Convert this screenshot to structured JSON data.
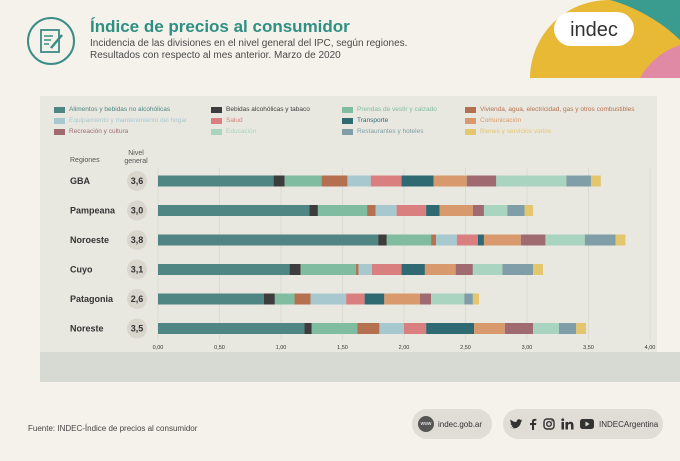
{
  "header": {
    "title": "Índice de precios al consumidor",
    "subtitle_line1": "Incidencia de las divisiones en el nivel general del IPC, según regiones.",
    "subtitle_line2": "Resultados con respecto al mes anterior. Marzo de 2020",
    "brand": "indec"
  },
  "chart_data": {
    "type": "bar",
    "orientation": "horizontal",
    "stacked": true,
    "row_header": "Regiones",
    "value_header_line1": "Nivel",
    "value_header_line2": "general",
    "categories": [
      "GBA",
      "Pampeana",
      "Noroeste",
      "Cuyo",
      "Patagonia",
      "Noreste"
    ],
    "nivel_general_labels": [
      "3,6",
      "3,0",
      "3,8",
      "3,1",
      "2,6",
      "3,5"
    ],
    "xlim": [
      0,
      4
    ],
    "ticks": [
      "0,00",
      "0,50",
      "1,00",
      "1,50",
      "2,00",
      "2,50",
      "3,00",
      "3,50",
      "4,00"
    ],
    "tick_values": [
      0,
      0.5,
      1,
      1.5,
      2,
      2.5,
      3,
      3.5,
      4
    ],
    "series": [
      {
        "name": "Alimentos y bebidas no alcohólicas",
        "color": "#4f8683",
        "values": [
          0.94,
          1.23,
          1.79,
          1.07,
          0.86,
          1.19
        ]
      },
      {
        "name": "Bebidas alcohólicas y tabaco",
        "color": "#3d3d3d",
        "values": [
          0.09,
          0.07,
          0.07,
          0.09,
          0.09,
          0.06
        ]
      },
      {
        "name": "Prendas de vestir y calzado",
        "color": "#7fbca0",
        "values": [
          0.3,
          0.4,
          0.36,
          0.45,
          0.16,
          0.37
        ]
      },
      {
        "name": "Vivienda, agua, electricidad, gas y otros combustibles",
        "color": "#b5714f",
        "values": [
          0.21,
          0.07,
          0.04,
          0.02,
          0.13,
          0.18
        ]
      },
      {
        "name": "Equipamiento y mantenimiento del hogar",
        "color": "#a8c8cf",
        "values": [
          0.19,
          0.17,
          0.17,
          0.11,
          0.29,
          0.2
        ]
      },
      {
        "name": "Salud",
        "color": "#d97f80",
        "values": [
          0.25,
          0.24,
          0.17,
          0.24,
          0.15,
          0.18
        ]
      },
      {
        "name": "Transporte",
        "color": "#2f6a73",
        "values": [
          0.26,
          0.11,
          0.05,
          0.19,
          0.16,
          0.39
        ]
      },
      {
        "name": "Comunicación",
        "color": "#d89a6c",
        "values": [
          0.27,
          0.27,
          0.3,
          0.25,
          0.29,
          0.25
        ]
      },
      {
        "name": "Recreación y cultura",
        "color": "#a06b70",
        "values": [
          0.24,
          0.09,
          0.2,
          0.14,
          0.09,
          0.23
        ]
      },
      {
        "name": "Educación",
        "color": "#a9d4bf",
        "values": [
          0.57,
          0.19,
          0.32,
          0.24,
          0.27,
          0.21
        ]
      },
      {
        "name": "Restaurantes y hoteles",
        "color": "#7f9ea7",
        "values": [
          0.2,
          0.14,
          0.25,
          0.25,
          0.07,
          0.14
        ]
      },
      {
        "name": "Bienes y servicios varios",
        "color": "#e3c66e",
        "values": [
          0.08,
          0.07,
          0.08,
          0.08,
          0.05,
          0.08
        ]
      }
    ]
  },
  "footer": {
    "source": "Fuente: INDEC-Índice de precios al consumidor",
    "website": "indec.gob.ar",
    "www_label": "www",
    "social_handle": "INDECArgentina"
  },
  "colors": {
    "title": "#2f8f83",
    "corner_yellow": "#e8b935",
    "corner_teal": "#3a9c8f",
    "corner_pink": "#e18aa5"
  }
}
